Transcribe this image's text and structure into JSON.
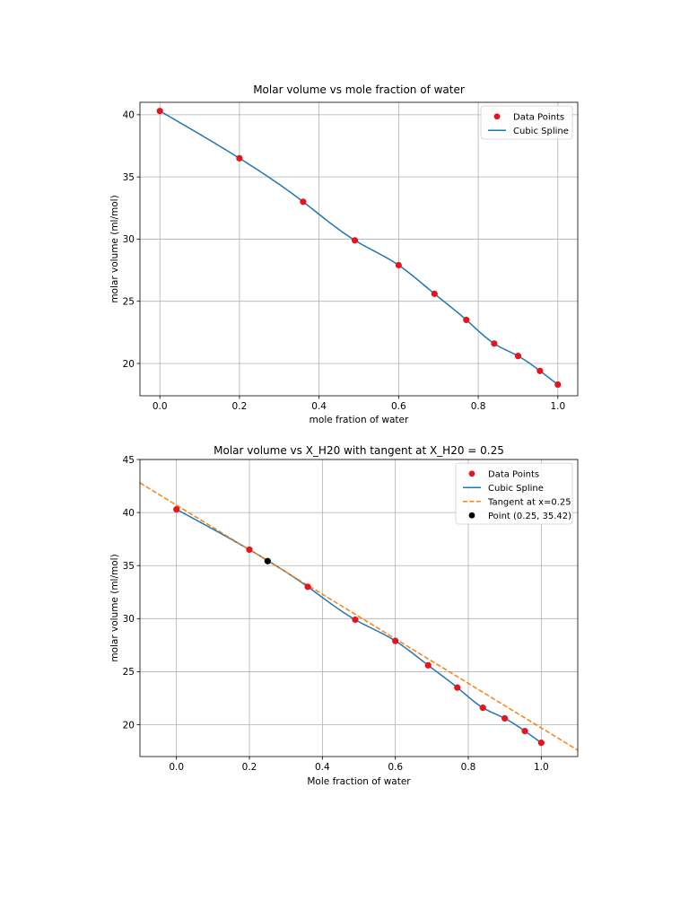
{
  "chart_data": [
    {
      "type": "line",
      "title": "Molar volume vs mole fraction of water",
      "xlabel": "mole fration of water",
      "ylabel": "molar volume (ml/mol)",
      "xlim": [
        -0.05,
        1.05
      ],
      "ylim": [
        17.4,
        41.0
      ],
      "xticks": [
        0.0,
        0.2,
        0.4,
        0.6,
        0.8,
        1.0
      ],
      "xtick_labels": [
        "0.0",
        "0.2",
        "0.4",
        "0.6",
        "0.8",
        "1.0"
      ],
      "yticks": [
        20,
        25,
        30,
        35,
        40
      ],
      "ytick_labels": [
        "20",
        "25",
        "30",
        "35",
        "40"
      ],
      "grid": true,
      "legend_position": "top-right",
      "series": [
        {
          "name": "Data Points",
          "kind": "markers",
          "color": "#e8141c",
          "x": [
            0.0,
            0.2,
            0.36,
            0.49,
            0.6,
            0.69,
            0.77,
            0.84,
            0.9,
            0.955,
            1.0
          ],
          "y": [
            40.3,
            36.5,
            33.0,
            29.9,
            27.9,
            25.6,
            23.5,
            21.6,
            20.6,
            19.4,
            18.3
          ]
        },
        {
          "name": "Cubic Spline",
          "kind": "line",
          "color": "#1f77b4",
          "x": [
            0.0,
            0.2,
            0.36,
            0.49,
            0.6,
            0.69,
            0.77,
            0.84,
            0.9,
            0.955,
            1.0
          ],
          "y": [
            40.3,
            36.5,
            33.0,
            29.9,
            27.9,
            25.6,
            23.5,
            21.6,
            20.6,
            19.4,
            18.3
          ]
        }
      ]
    },
    {
      "type": "line",
      "title": "Molar volume vs X_H20 with tangent at X_H20 = 0.25",
      "xlabel": "Mole fraction of water",
      "ylabel": "molar volume (ml/mol)",
      "xlim": [
        -0.1,
        1.1
      ],
      "ylim": [
        17.0,
        45.0
      ],
      "xticks": [
        0.0,
        0.2,
        0.4,
        0.6,
        0.8,
        1.0
      ],
      "xtick_labels": [
        "0.0",
        "0.2",
        "0.4",
        "0.6",
        "0.8",
        "1.0"
      ],
      "yticks": [
        20,
        25,
        30,
        35,
        40,
        45
      ],
      "ytick_labels": [
        "20",
        "25",
        "30",
        "35",
        "40",
        "45"
      ],
      "grid": true,
      "legend_position": "top-right",
      "series": [
        {
          "name": "Data Points",
          "kind": "markers",
          "color": "#e8141c",
          "x": [
            0.0,
            0.2,
            0.36,
            0.49,
            0.6,
            0.69,
            0.77,
            0.84,
            0.9,
            0.955,
            1.0
          ],
          "y": [
            40.3,
            36.5,
            33.0,
            29.9,
            27.9,
            25.6,
            23.5,
            21.6,
            20.6,
            19.4,
            18.3
          ]
        },
        {
          "name": "Cubic Spline",
          "kind": "line",
          "color": "#1f77b4",
          "x": [
            0.0,
            0.2,
            0.36,
            0.49,
            0.6,
            0.69,
            0.77,
            0.84,
            0.9,
            0.955,
            1.0
          ],
          "y": [
            40.3,
            36.5,
            33.0,
            29.9,
            27.9,
            25.6,
            23.5,
            21.6,
            20.6,
            19.4,
            18.3
          ]
        },
        {
          "name": "Tangent at x=0.25",
          "kind": "dashed-line",
          "color": "#ff7f0e",
          "x": [
            -0.1,
            1.1
          ],
          "y": [
            42.8,
            17.6
          ]
        },
        {
          "name": "Point (0.25, 35.42)",
          "kind": "markers",
          "color": "#000000",
          "x": [
            0.25
          ],
          "y": [
            35.42
          ]
        }
      ]
    }
  ]
}
